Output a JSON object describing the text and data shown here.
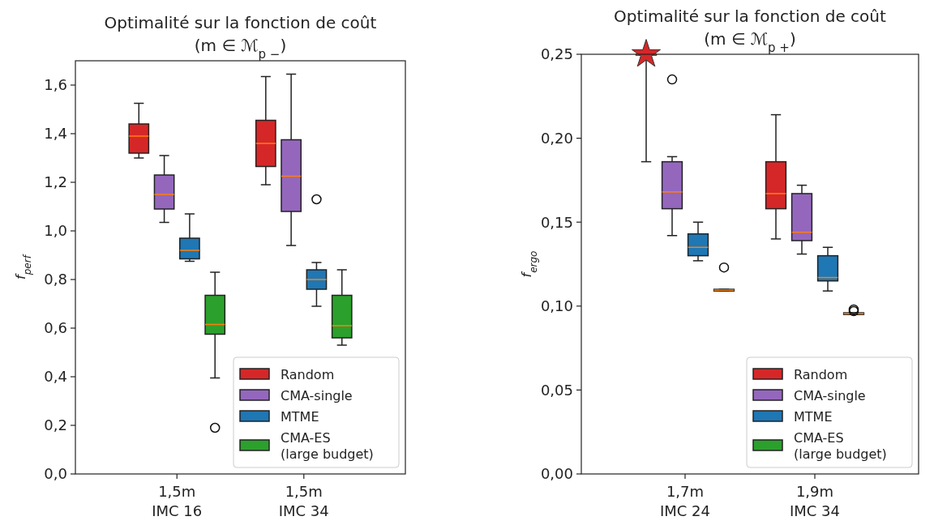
{
  "chart_data": [
    {
      "type": "box",
      "title": "Optimalité sur la fonction de coût\n(m ∈ ℳ$_{p −}$)",
      "ylabel": "f$_{perf}$",
      "categories": [
        "1,5m\nIMC 16",
        "1,5m\nIMC 34"
      ],
      "ylim": [
        0,
        1.7
      ],
      "yticks": [
        {
          "value": 0,
          "label": "0,0"
        },
        {
          "value": 0.2,
          "label": "0,2"
        },
        {
          "value": 0.4,
          "label": "0,4"
        },
        {
          "value": 0.6,
          "label": "0,6"
        },
        {
          "value": 0.8,
          "label": "0,8"
        },
        {
          "value": 1.0,
          "label": "1,0"
        },
        {
          "value": 1.2,
          "label": "1,2"
        },
        {
          "value": 1.4,
          "label": "1,4"
        },
        {
          "value": 1.6,
          "label": "1,6"
        }
      ],
      "legend": "bottom right",
      "grid": false,
      "series": [
        {
          "name": "Random",
          "color": "#d62728",
          "boxes": [
            {
              "low": 1.3,
              "q1": 1.32,
              "median": 1.39,
              "q3": 1.44,
              "high": 1.525
            },
            {
              "low": 1.19,
              "q1": 1.265,
              "median": 1.36,
              "q3": 1.455,
              "high": 1.635
            }
          ]
        },
        {
          "name": "CMA-single",
          "color": "#9467bd",
          "boxes": [
            {
              "low": 1.035,
              "q1": 1.09,
              "median": 1.15,
              "q3": 1.23,
              "high": 1.31
            },
            {
              "low": 0.94,
              "q1": 1.08,
              "median": 1.225,
              "q3": 1.375,
              "high": 1.645
            }
          ]
        },
        {
          "name": "MTME",
          "color": "#1f77b4",
          "boxes": [
            {
              "low": 0.875,
              "q1": 0.885,
              "median": 0.92,
              "q3": 0.97,
              "high": 1.07
            },
            {
              "low": 0.69,
              "q1": 0.76,
              "median": 0.8,
              "q3": 0.84,
              "high": 0.87,
              "outliers": [
                1.13
              ]
            }
          ]
        },
        {
          "name": "CMA-ES\n(large budget)",
          "color": "#2ca02c",
          "boxes": [
            {
              "low": 0.395,
              "q1": 0.575,
              "median": 0.615,
              "q3": 0.735,
              "high": 0.83,
              "outliers": [
                0.19
              ]
            },
            {
              "low": 0.53,
              "q1": 0.56,
              "median": 0.61,
              "q3": 0.735,
              "high": 0.84
            }
          ]
        }
      ]
    },
    {
      "type": "box",
      "title": "Optimalité sur la fonction de coût\n(m ∈ ℳ$_{p +}$)",
      "ylabel": "f$_{ergo}$",
      "categories": [
        "1,7m\nIMC 24",
        "1,9m\nIMC 34"
      ],
      "ylim": [
        0,
        0.25
      ],
      "yticks": [
        {
          "value": 0,
          "label": "0,00"
        },
        {
          "value": 0.05,
          "label": "0,05"
        },
        {
          "value": 0.1,
          "label": "0,10"
        },
        {
          "value": 0.15,
          "label": "0,15"
        },
        {
          "value": 0.2,
          "label": "0,20"
        },
        {
          "value": 0.25,
          "label": "0,25"
        }
      ],
      "legend": "bottom right",
      "grid": false,
      "series": [
        {
          "name": "Random",
          "color": "#d62728",
          "boxes": [
            {
              "low": 0.186,
              "q1": 0.25,
              "median": 0.25,
              "q3": 0.25,
              "high": 0.25
            },
            {
              "low": 0.14,
              "q1": 0.158,
              "median": 0.167,
              "q3": 0.186,
              "high": 0.214
            }
          ]
        },
        {
          "name": "CMA-single",
          "color": "#9467bd",
          "boxes": [
            {
              "low": 0.142,
              "q1": 0.158,
              "median": 0.168,
              "q3": 0.186,
              "high": 0.189,
              "outliers": [
                0.235
              ]
            },
            {
              "low": 0.131,
              "q1": 0.139,
              "median": 0.144,
              "q3": 0.167,
              "high": 0.172
            }
          ]
        },
        {
          "name": "MTME",
          "color": "#1f77b4",
          "boxes": [
            {
              "low": 0.127,
              "q1": 0.13,
              "median": 0.135,
              "q3": 0.143,
              "high": 0.15
            },
            {
              "low": 0.109,
              "q1": 0.115,
              "median": 0.117,
              "q3": 0.13,
              "high": 0.135
            }
          ]
        },
        {
          "name": "CMA-ES\n(large budget)",
          "color": "#2ca02c",
          "boxes": [
            {
              "low": 0.109,
              "q1": 0.109,
              "median": 0.1095,
              "q3": 0.11,
              "high": 0.11,
              "outliers": [
                0.123
              ]
            },
            {
              "low": 0.095,
              "q1": 0.095,
              "median": 0.0955,
              "q3": 0.096,
              "high": 0.096,
              "outliers": [
                0.098,
                0.097
              ]
            }
          ]
        },
        {
          "type": "scatter",
          "color": "#d62728",
          "marker": "star",
          "x": [
            "1,7m\nIMC 24"
          ],
          "values": [
            0.25
          ]
        }
      ]
    }
  ]
}
